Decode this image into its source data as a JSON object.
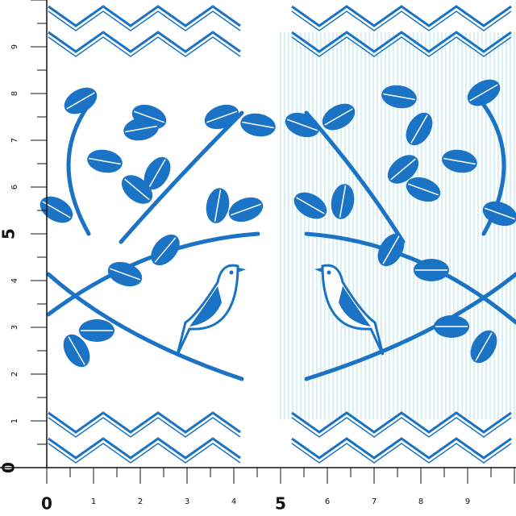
{
  "ruler": {
    "x_labels": [
      0,
      1,
      2,
      3,
      4,
      5,
      6,
      7,
      8,
      9
    ],
    "y_labels": [
      0,
      1,
      2,
      3,
      4,
      5,
      6,
      7,
      8,
      9
    ]
  }
}
